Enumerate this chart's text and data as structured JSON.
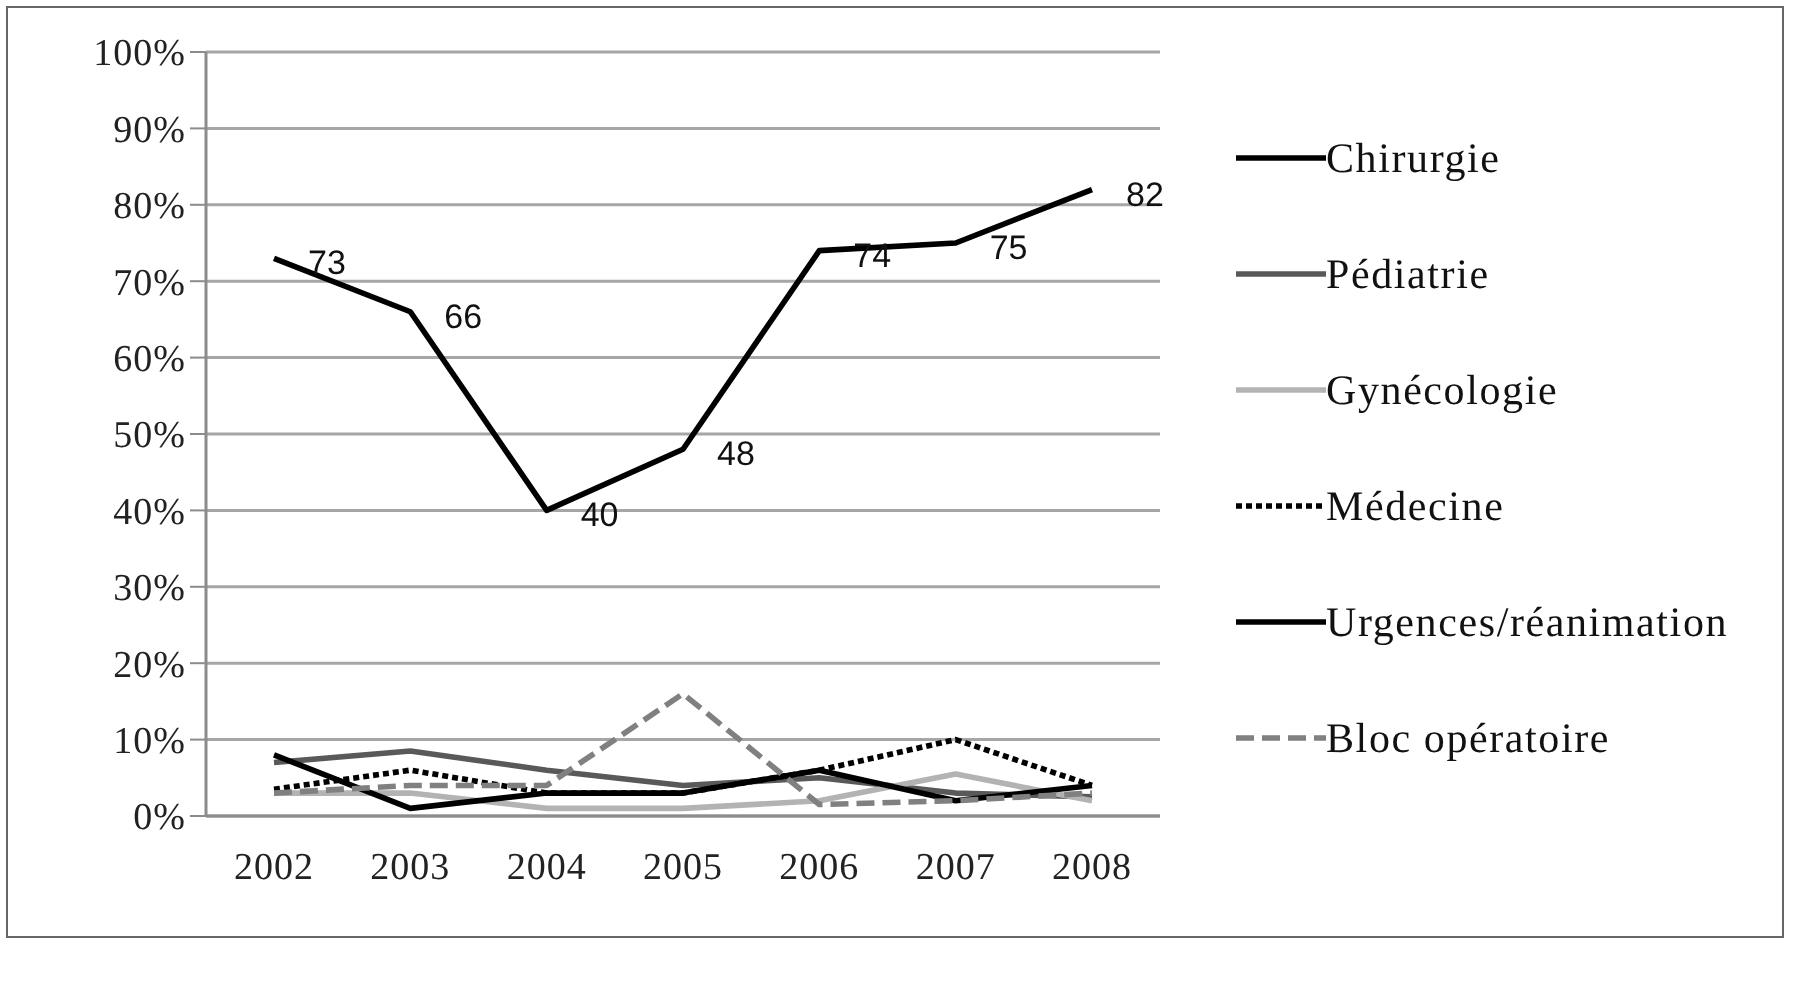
{
  "chart_data": {
    "type": "line",
    "categories": [
      "2002",
      "2003",
      "2004",
      "2005",
      "2006",
      "2007",
      "2008"
    ],
    "series": [
      {
        "name": "Chirurgie",
        "color": "#000000",
        "line_style": "solid",
        "values": [
          73,
          66,
          40,
          48,
          74,
          75,
          82
        ],
        "value_labels": [
          "73",
          "66",
          "40",
          "48",
          "74",
          "75",
          "82"
        ]
      },
      {
        "name": "Pédiatrie",
        "color": "#595959",
        "line_style": "solid",
        "values": [
          7,
          8.5,
          6,
          4,
          5,
          3,
          2.5
        ]
      },
      {
        "name": "Gynécologie",
        "color": "#b3b3b3",
        "line_style": "solid",
        "values": [
          3,
          3,
          1,
          1,
          2,
          5.5,
          2
        ]
      },
      {
        "name": "Médecine",
        "color": "#000000",
        "line_style": "dotted",
        "values": [
          3.5,
          6,
          3,
          3,
          6,
          10,
          4
        ]
      },
      {
        "name": "Urgences/réanimation",
        "color": "#000000",
        "line_style": "solid",
        "values": [
          8,
          1,
          3,
          3,
          6,
          2,
          4
        ]
      },
      {
        "name": "Bloc opératoire",
        "color": "#808080",
        "line_style": "dashed",
        "values": [
          3,
          4,
          4,
          16,
          1.5,
          2,
          3
        ]
      }
    ],
    "ylim": [
      0,
      100
    ],
    "yticks": [
      {
        "value": 0,
        "label": "0%"
      },
      {
        "value": 10,
        "label": "10%"
      },
      {
        "value": 20,
        "label": "20%"
      },
      {
        "value": 30,
        "label": "30%"
      },
      {
        "value": 40,
        "label": "40%"
      },
      {
        "value": 50,
        "label": "50%"
      },
      {
        "value": 60,
        "label": "60%"
      },
      {
        "value": 70,
        "label": "70%"
      },
      {
        "value": 80,
        "label": "80%"
      },
      {
        "value": 90,
        "label": "90%"
      },
      {
        "value": 100,
        "label": "100%"
      }
    ],
    "grid": "y",
    "legend": "right",
    "marker": "none"
  }
}
